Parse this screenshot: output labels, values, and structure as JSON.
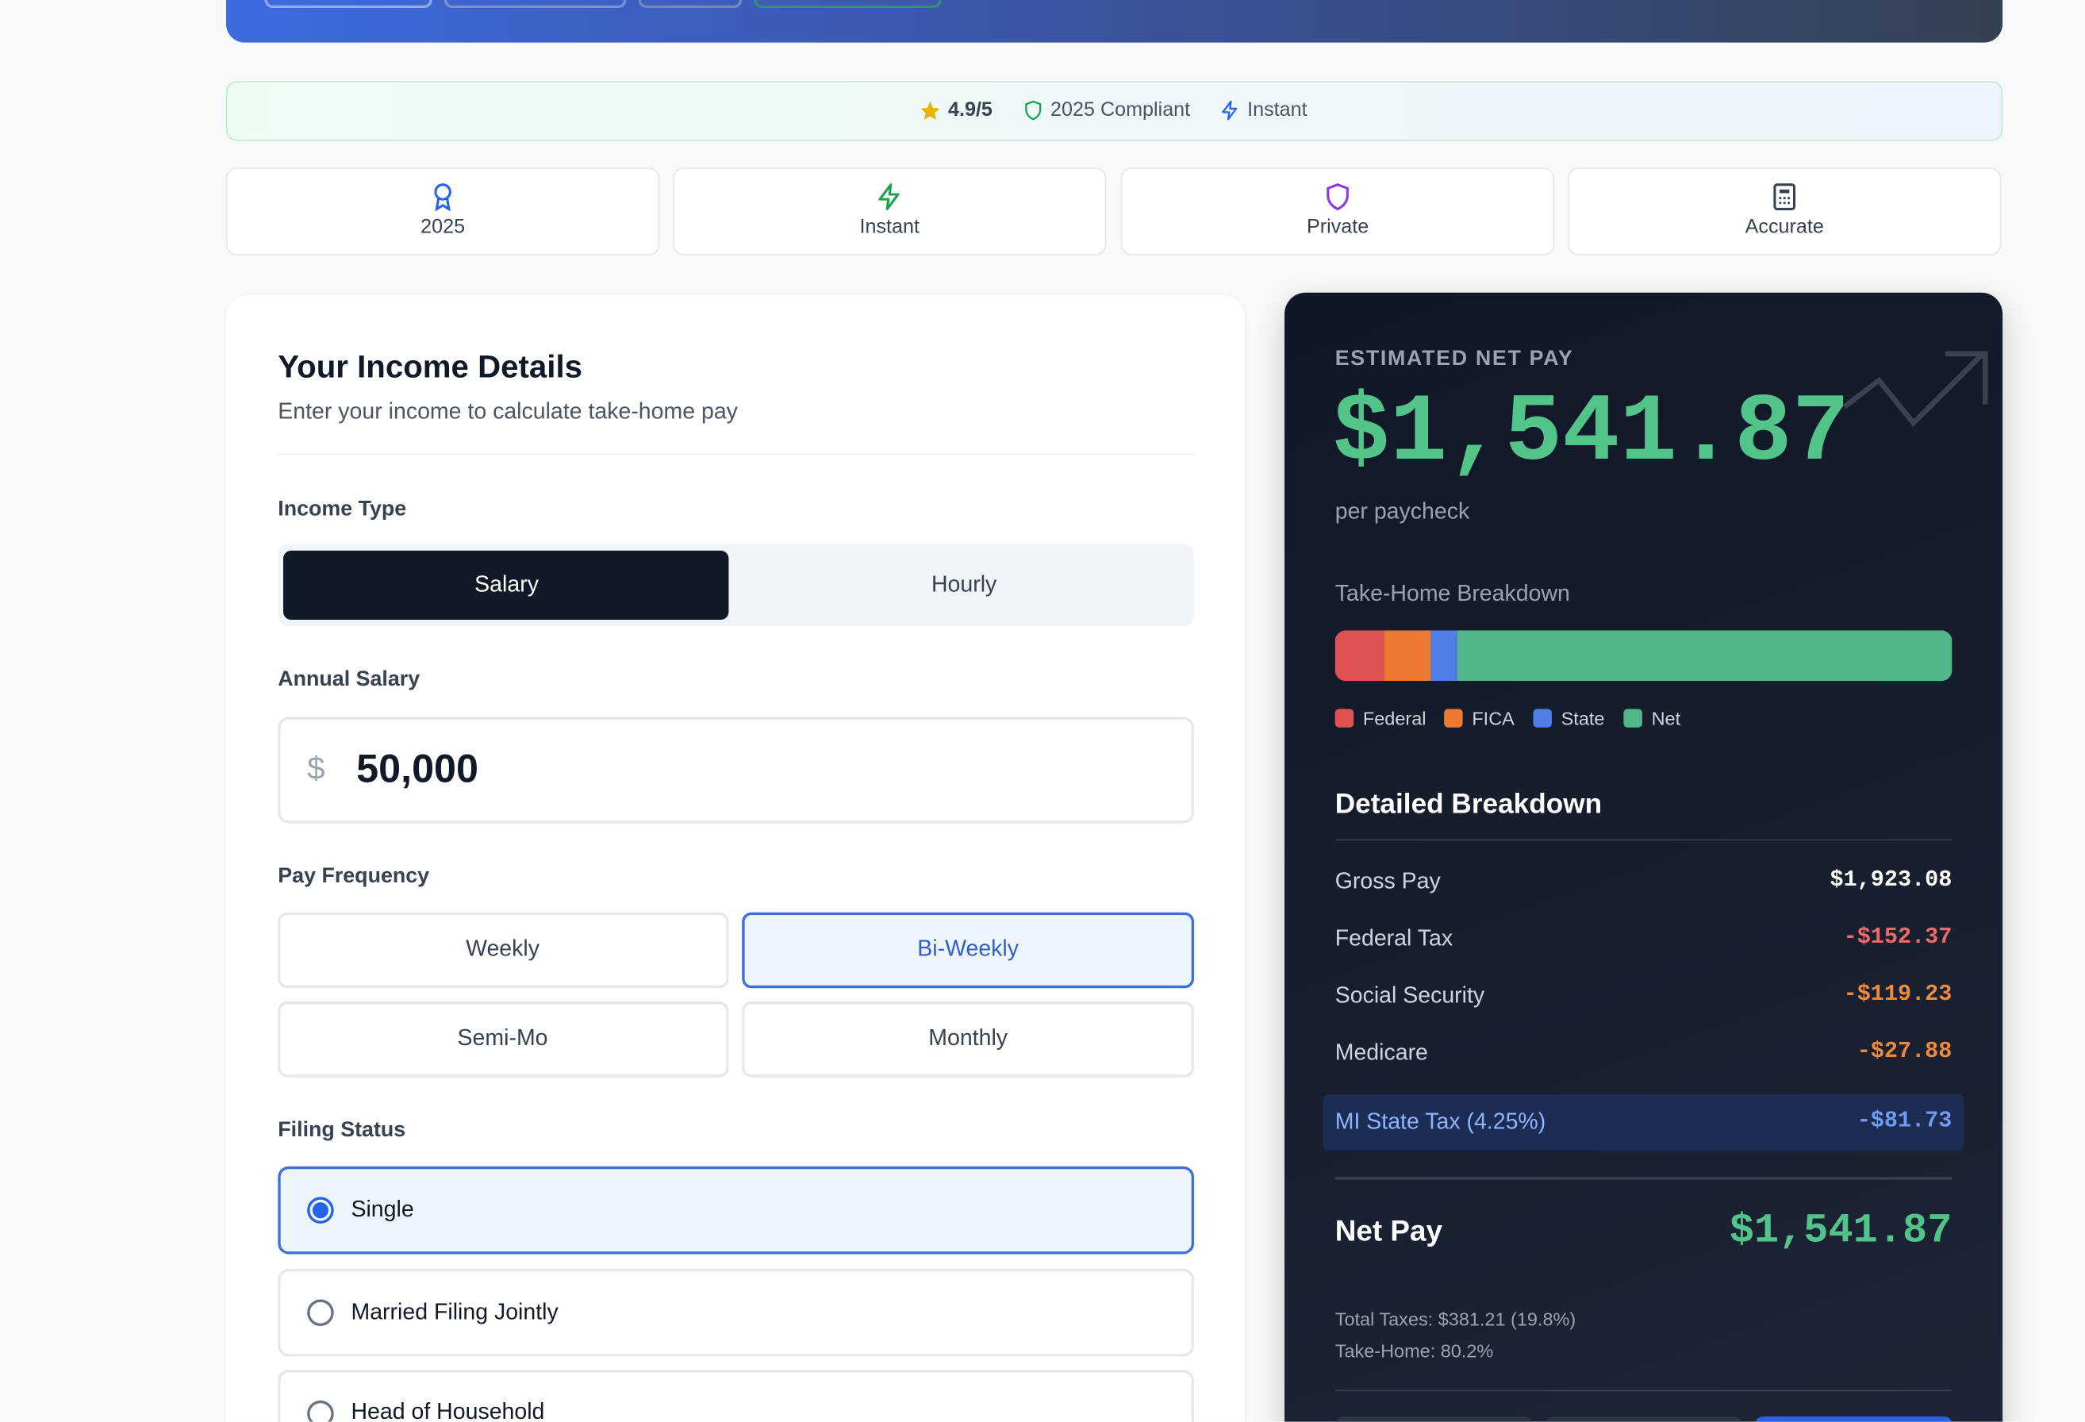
{
  "trust_bar": {
    "rating": "4.9/5",
    "compliant": "2025 Compliant",
    "speed": "Instant"
  },
  "features": [
    "2025",
    "Instant",
    "Private",
    "Accurate"
  ],
  "form": {
    "title": "Your Income Details",
    "subtitle": "Enter your income to calculate take-home pay",
    "income_type_label": "Income Type",
    "income_types": [
      "Salary",
      "Hourly"
    ],
    "salary_label": "Annual Salary",
    "currency": "$",
    "salary": "50,000",
    "frequency_label": "Pay Frequency",
    "frequencies": [
      "Weekly",
      "Bi-Weekly",
      "Semi-Mo",
      "Monthly"
    ],
    "filing_label": "Filing Status",
    "filing_options": [
      "Single",
      "Married Filing Jointly",
      "Head of Household"
    ]
  },
  "result": {
    "label": "ESTIMATED NET PAY",
    "amount": "$1,541.87",
    "period": "per paycheck",
    "breakdown_title": "Detailed Breakdown",
    "rows": [
      [
        "Gross Pay",
        "$1,923.08"
      ],
      [
        "Federal Tax",
        "-$152.37"
      ],
      [
        "Social Security",
        "-$119.23"
      ],
      [
        "Medicare",
        "-$27.88"
      ],
      [
        "MI State Tax (4.25%)",
        "-$81.73"
      ]
    ],
    "net_label": "Net Pay",
    "net_value": "$1,541.87",
    "total_taxes": "Total Taxes: $381.21 (19.8%)",
    "take_home": "Take-Home: 80.2%"
  },
  "chart_data": {
    "type": "stacked-bar",
    "title": "Take-Home Breakdown",
    "series": [
      {
        "name": "Federal",
        "color": "#e05252",
        "values": [
          152.37
        ]
      },
      {
        "name": "FICA",
        "color": "#ec7a33",
        "values": [
          147.11
        ]
      },
      {
        "name": "State",
        "color": "#4f7fe6",
        "values": [
          81.73
        ]
      },
      {
        "name": "Net",
        "color": "#52b788",
        "values": [
          1541.87
        ]
      }
    ]
  }
}
